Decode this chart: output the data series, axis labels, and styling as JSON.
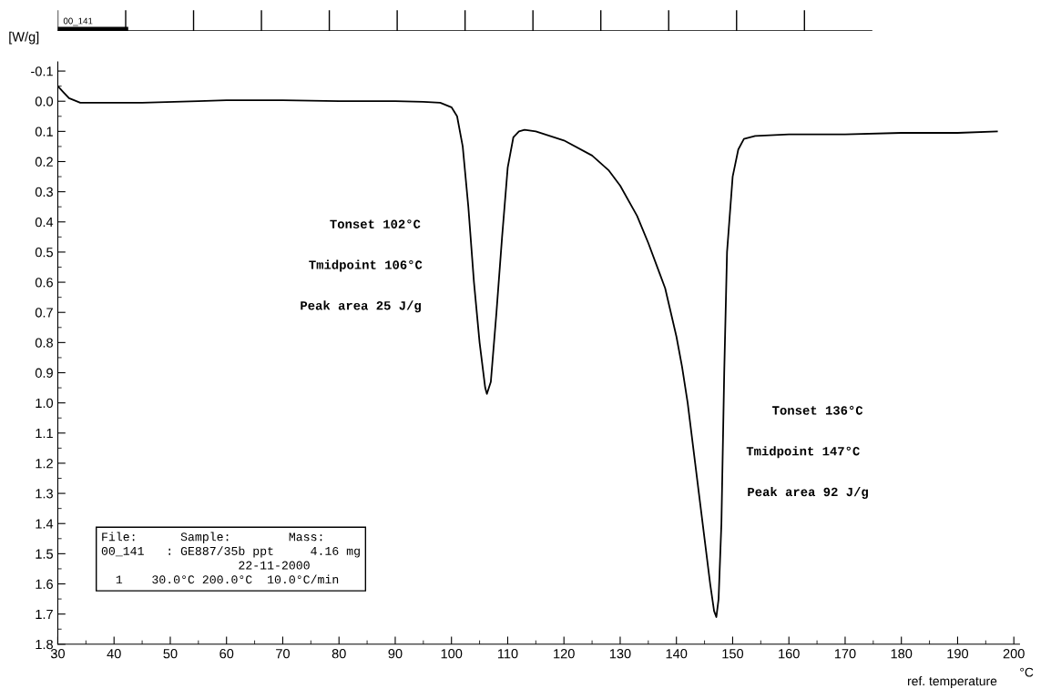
{
  "chart_data": {
    "type": "line",
    "xlabel": "ref. temperature",
    "ylabel": "[W/g]",
    "x2label": "°C",
    "series": [
      {
        "color": "#000000",
        "x": [
          30,
          31,
          32,
          34,
          40,
          45,
          55,
          60,
          70,
          80,
          90,
          95,
          98,
          100,
          101,
          102,
          103,
          104,
          105,
          106,
          106.3,
          107,
          108,
          109,
          110,
          111,
          112,
          113,
          115,
          120,
          125,
          128,
          130,
          133,
          135,
          137,
          138,
          140,
          141,
          142,
          143,
          144,
          145,
          146,
          146.7,
          147.1,
          147.5,
          148,
          148.5,
          149,
          150,
          151,
          152,
          154,
          160,
          170,
          180,
          190,
          197
        ],
        "values": [
          -0.05,
          -0.03,
          -0.01,
          0.005,
          0.005,
          0.005,
          0.0,
          -0.003,
          -0.003,
          0.0,
          0.0,
          0.002,
          0.005,
          0.02,
          0.05,
          0.15,
          0.35,
          0.6,
          0.8,
          0.95,
          0.97,
          0.93,
          0.7,
          0.45,
          0.22,
          0.12,
          0.1,
          0.095,
          0.1,
          0.13,
          0.18,
          0.23,
          0.28,
          0.38,
          0.47,
          0.57,
          0.62,
          0.78,
          0.88,
          1.0,
          1.15,
          1.3,
          1.45,
          1.6,
          1.69,
          1.71,
          1.65,
          1.4,
          0.9,
          0.5,
          0.25,
          0.16,
          0.125,
          0.115,
          0.11,
          0.11,
          0.105,
          0.105,
          0.1
        ]
      }
    ],
    "xlim": [
      30,
      201
    ],
    "xticks": [
      30,
      40,
      50,
      60,
      70,
      80,
      90,
      100,
      110,
      120,
      130,
      140,
      150,
      160,
      170,
      180,
      190,
      200
    ],
    "ylim": [
      1.8,
      -0.13
    ],
    "yticks": [
      {
        "value": -0.1,
        "label": "-0.1"
      },
      {
        "value": 0,
        "label": "0.0"
      },
      0.1,
      0.2,
      0.3,
      0.4,
      0.5,
      0.6,
      0.7,
      0.8,
      0.9,
      {
        "value": 1,
        "label": "1.0"
      },
      1.1,
      1.2,
      1.3,
      1.4,
      1.5,
      1.6,
      1.7,
      1.8
    ],
    "grid": false,
    "legend": false,
    "marker": "none",
    "line_style": "solid",
    "annotations": [
      "00_141",
      "Tonset 102°C",
      "Tmidpoint 106°C",
      "Peak area 25 J/g",
      "Tonset 136°C",
      "Tmidpoint 147°C",
      "Peak area 92 J/g",
      "File:      Sample:        Mass:\n00_141   : GE887/35b ppt     4.16 mg\n                   22-11-2000\n  1    30.0°C 200.0°C  10.0°C/min"
    ]
  }
}
